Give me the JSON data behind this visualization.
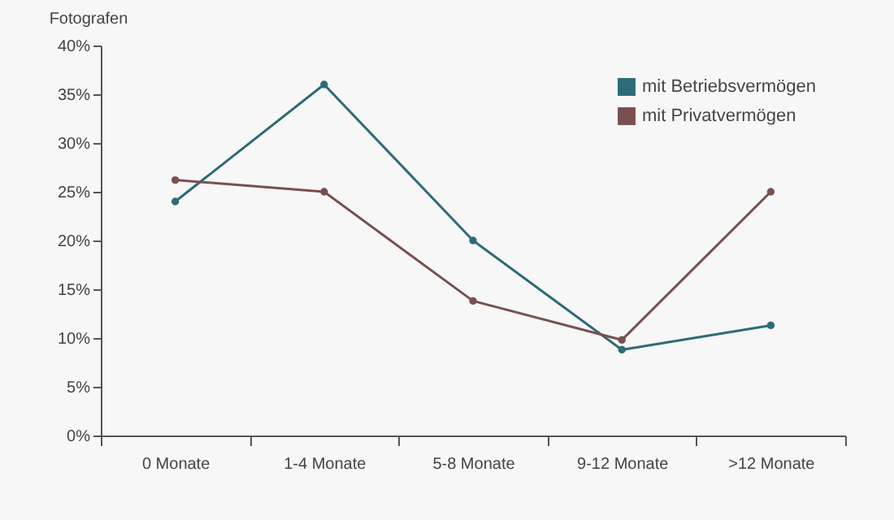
{
  "chart_data": {
    "type": "line",
    "ylabel": "Fotografen",
    "categories": [
      "0 Monate",
      "1-4 Monate",
      "5-8 Monate",
      "9-12 Monate",
      ">12 Monate"
    ],
    "series": [
      {
        "name": "mit Betriebsvermögen",
        "color": "#2e6b78",
        "values": [
          24,
          36,
          20,
          8.8,
          11.3
        ]
      },
      {
        "name": "mit Privatvermögen",
        "color": "#7a4f4f",
        "values": [
          26.2,
          25,
          13.8,
          9.8,
          25
        ]
      }
    ],
    "ylim": [
      0,
      40
    ],
    "yticks": [
      {
        "value": 0,
        "label": "0%"
      },
      {
        "value": 5,
        "label": "5%"
      },
      {
        "value": 10,
        "label": "10%"
      },
      {
        "value": 15,
        "label": "15%"
      },
      {
        "value": 20,
        "label": "20%"
      },
      {
        "value": 25,
        "label": "25%"
      },
      {
        "value": 30,
        "label": "30%"
      },
      {
        "value": 35,
        "label": "35%"
      },
      {
        "value": 40,
        "label": "40%"
      }
    ],
    "grid": false,
    "legend": "top right",
    "marker": "circle",
    "line_style": "solid"
  }
}
